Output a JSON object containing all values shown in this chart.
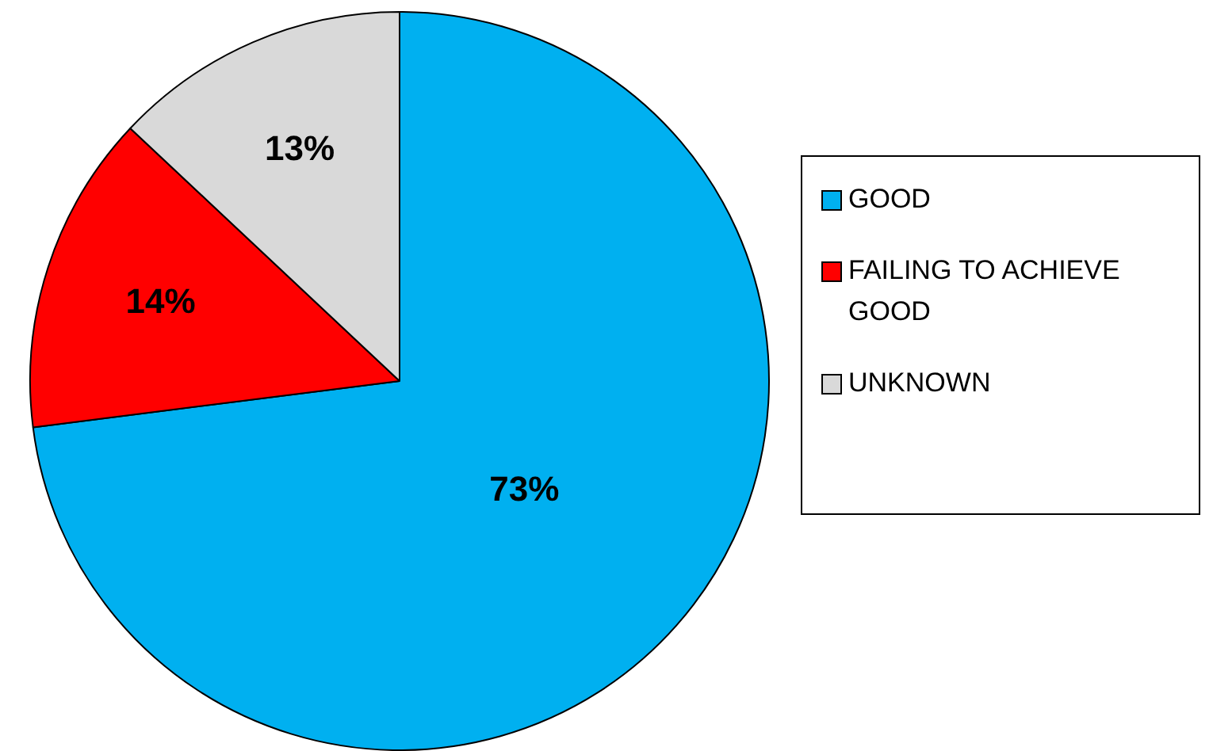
{
  "chart_data": {
    "type": "pie",
    "categories": [
      "GOOD",
      "FAILING TO ACHIEVE GOOD",
      "UNKNOWN"
    ],
    "values": [
      73,
      14,
      13
    ],
    "colors": [
      "#00b0f0",
      "#ff0000",
      "#d9d9d9"
    ],
    "value_labels": [
      "73%",
      "14%",
      "13%"
    ],
    "legend": "right"
  }
}
